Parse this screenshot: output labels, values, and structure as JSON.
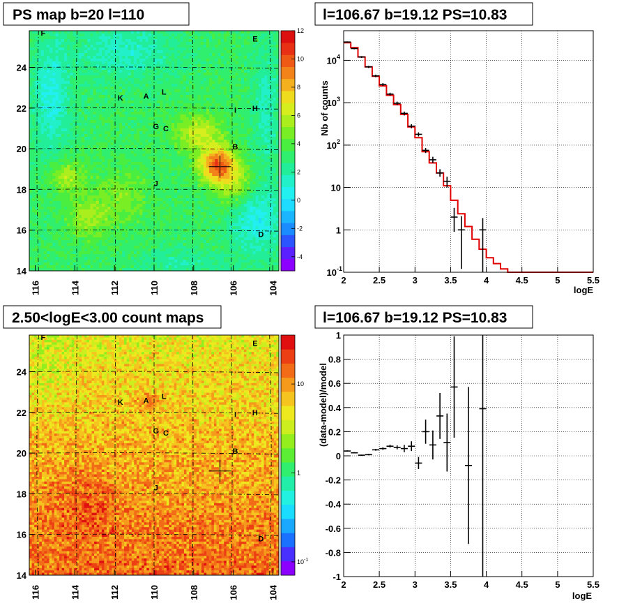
{
  "titles": {
    "map_top": "PS map b=20 l=110",
    "spectrum": "l=106.67 b=19.12 PS=10.83",
    "map_bottom": "2.50<logE<3.00 count maps",
    "residual": "l=106.67 b=19.12 PS=10.83"
  },
  "marker": {
    "l": 106.67,
    "b": 19.12
  },
  "sources": [
    {
      "name": "F",
      "l": 115.6,
      "b": 25.7
    },
    {
      "name": "E",
      "l": 104.9,
      "b": 25.4
    },
    {
      "name": "K",
      "l": 111.7,
      "b": 22.5
    },
    {
      "name": "A",
      "l": 110.4,
      "b": 22.6
    },
    {
      "name": "L",
      "l": 109.5,
      "b": 22.8
    },
    {
      "name": "I",
      "l": 105.9,
      "b": 21.9
    },
    {
      "name": "H",
      "l": 104.9,
      "b": 22.0
    },
    {
      "name": "G",
      "l": 109.9,
      "b": 21.1
    },
    {
      "name": "C",
      "l": 109.4,
      "b": 21.0
    },
    {
      "name": "B",
      "l": 105.9,
      "b": 20.1
    },
    {
      "name": "J",
      "l": 109.9,
      "b": 18.3
    },
    {
      "name": "D",
      "l": 104.6,
      "b": 15.8
    }
  ],
  "chart_data": [
    {
      "type": "heatmap",
      "title": "PS map b=20 l=110",
      "x_ticks": [
        "116",
        "114",
        "112",
        "110",
        "108",
        "106",
        "104"
      ],
      "y_ticks": [
        "14",
        "16",
        "18",
        "20",
        "22",
        "24"
      ],
      "x_range": [
        116.3,
        103.7
      ],
      "y_range": [
        14.0,
        25.8
      ],
      "color_scale": {
        "min": -5,
        "max": 12,
        "ticks": [
          "-4",
          "-2",
          "0",
          "2",
          "4",
          "6",
          "8",
          "10",
          "12"
        ]
      }
    },
    {
      "type": "line",
      "title": "l=106.67 b=19.12 PS=10.83",
      "xlabel": "logE",
      "ylabel": "Nb of counts",
      "xlim": [
        2,
        5.5
      ],
      "ylim": [
        0.1,
        50000
      ],
      "yscale": "log",
      "x_ticks": [
        "2",
        "2.5",
        "3",
        "3.5",
        "4",
        "4.5",
        "5",
        "5.5"
      ],
      "y_ticks": [
        {
          "v": 0.1,
          "base": "10",
          "exp": "-1"
        },
        {
          "v": 1,
          "base": "1",
          "exp": ""
        },
        {
          "v": 10,
          "base": "10",
          "exp": ""
        },
        {
          "v": 100,
          "base": "10",
          "exp": "2"
        },
        {
          "v": 1000,
          "base": "10",
          "exp": "3"
        },
        {
          "v": 10000,
          "base": "10",
          "exp": "4"
        }
      ],
      "model_bin_edges": [
        2.0,
        2.1,
        2.2,
        2.3,
        2.4,
        2.5,
        2.6,
        2.7,
        2.8,
        2.9,
        3.0,
        3.1,
        3.2,
        3.3,
        3.4,
        3.5,
        3.6,
        3.7,
        3.8,
        3.9,
        4.0,
        4.1,
        4.2,
        4.3,
        4.4,
        4.5,
        4.6,
        4.7,
        4.8,
        4.9,
        5.0,
        5.1,
        5.2,
        5.3,
        5.4,
        5.5
      ],
      "model_values": [
        26000,
        20000,
        12000,
        7000,
        4200,
        2500,
        1500,
        900,
        530,
        270,
        150,
        70,
        38,
        22,
        11,
        5,
        2.4,
        1.2,
        0.6,
        0.35,
        0.22,
        0.16,
        0.12,
        0.1,
        0.1,
        0.1,
        0.1,
        0.1,
        0.1,
        0.1,
        0.1,
        0.1,
        0.1,
        0.1,
        0.1
      ],
      "data_points": [
        {
          "x": 2.05,
          "y": 27000,
          "lo": 26000,
          "hi": 28000
        },
        {
          "x": 2.15,
          "y": 19000,
          "lo": 18200,
          "hi": 19800
        },
        {
          "x": 2.25,
          "y": 12000,
          "lo": 11400,
          "hi": 12600
        },
        {
          "x": 2.35,
          "y": 7000,
          "lo": 6600,
          "hi": 7400
        },
        {
          "x": 2.45,
          "y": 4300,
          "lo": 4000,
          "hi": 4600
        },
        {
          "x": 2.55,
          "y": 2700,
          "lo": 2500,
          "hi": 2900
        },
        {
          "x": 2.65,
          "y": 1600,
          "lo": 1480,
          "hi": 1720
        },
        {
          "x": 2.75,
          "y": 970,
          "lo": 880,
          "hi": 1060
        },
        {
          "x": 2.85,
          "y": 560,
          "lo": 500,
          "hi": 620
        },
        {
          "x": 2.95,
          "y": 280,
          "lo": 250,
          "hi": 310
        },
        {
          "x": 3.05,
          "y": 180,
          "lo": 160,
          "hi": 200
        },
        {
          "x": 3.15,
          "y": 75,
          "lo": 65,
          "hi": 85
        },
        {
          "x": 3.25,
          "y": 45,
          "lo": 38,
          "hi": 53
        },
        {
          "x": 3.35,
          "y": 22,
          "lo": 18,
          "hi": 27
        },
        {
          "x": 3.45,
          "y": 14,
          "lo": 10,
          "hi": 18
        },
        {
          "x": 3.55,
          "y": 2,
          "lo": 0.9,
          "hi": 3.3
        },
        {
          "x": 3.65,
          "y": 1,
          "lo": 0.12,
          "hi": 2.1
        },
        {
          "x": 3.95,
          "y": 1,
          "lo": 0.1,
          "hi": 1.9
        }
      ]
    },
    {
      "type": "heatmap",
      "title": "2.50<logE<3.00 count maps",
      "x_ticks": [
        "116",
        "114",
        "112",
        "110",
        "108",
        "106",
        "104"
      ],
      "y_ticks": [
        "14",
        "16",
        "18",
        "20",
        "22",
        "24"
      ],
      "x_range": [
        116.3,
        103.7
      ],
      "y_range": [
        14.0,
        25.8
      ],
      "color_scale": {
        "scale": "log",
        "ticks": [
          {
            "v": 1,
            "label": "1"
          },
          {
            "v": 10,
            "label": "10"
          },
          {
            "v": 0.1,
            "label": "10",
            "exp": "-1"
          }
        ]
      }
    },
    {
      "type": "scatter",
      "title": "l=106.67 b=19.12 PS=10.83",
      "xlabel": "logE",
      "ylabel": "(data-model)/model",
      "xlim": [
        2,
        5.5
      ],
      "ylim": [
        -1,
        1
      ],
      "x_ticks": [
        "2",
        "2.5",
        "3",
        "3.5",
        "4",
        "4.5",
        "5",
        "5.5"
      ],
      "y_ticks": [
        "-1",
        "-0.8",
        "-0.6",
        "-0.4",
        "-0.2",
        "0",
        "0.2",
        "0.4",
        "0.6",
        "0.8",
        "1"
      ],
      "points": [
        {
          "x": 2.05,
          "y": 0.04,
          "err": 0.005
        },
        {
          "x": 2.15,
          "y": 0.025,
          "err": 0.005
        },
        {
          "x": 2.25,
          "y": 0.005,
          "err": 0.005
        },
        {
          "x": 2.35,
          "y": 0.01,
          "err": 0.006
        },
        {
          "x": 2.45,
          "y": 0.05,
          "err": 0.008
        },
        {
          "x": 2.55,
          "y": 0.06,
          "err": 0.01
        },
        {
          "x": 2.65,
          "y": 0.08,
          "err": 0.012
        },
        {
          "x": 2.75,
          "y": 0.07,
          "err": 0.016
        },
        {
          "x": 2.85,
          "y": 0.06,
          "err": 0.03
        },
        {
          "x": 2.95,
          "y": 0.08,
          "err": 0.04
        },
        {
          "x": 3.05,
          "y": -0.06,
          "err": 0.05
        },
        {
          "x": 3.15,
          "y": 0.2,
          "err": 0.1
        },
        {
          "x": 3.25,
          "y": 0.09,
          "err": 0.12
        },
        {
          "x": 3.35,
          "y": 0.33,
          "err": 0.19
        },
        {
          "x": 3.45,
          "y": 0.11,
          "err": 0.24
        },
        {
          "x": 3.55,
          "y": 0.57,
          "err": 0.42
        },
        {
          "x": 3.75,
          "y": -0.08,
          "err": 0.65
        },
        {
          "x": 3.95,
          "y": 0.39,
          "err": 1.6
        }
      ]
    }
  ]
}
